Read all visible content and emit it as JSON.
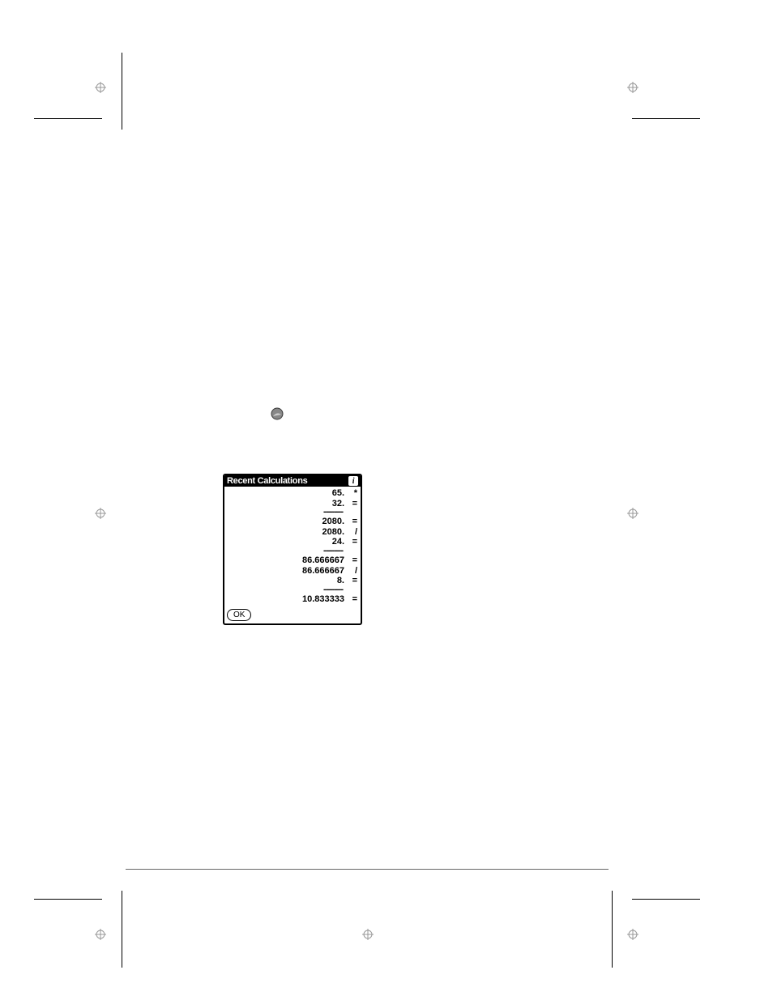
{
  "dialog": {
    "title": "Recent Calculations",
    "ok_label": "OK",
    "separator": "---------",
    "rows": [
      {
        "type": "line",
        "value": "65.",
        "op": "*"
      },
      {
        "type": "line",
        "value": "32.",
        "op": "="
      },
      {
        "type": "sep"
      },
      {
        "type": "line",
        "value": "2080.",
        "op": "="
      },
      {
        "type": "line",
        "value": "2080.",
        "op": "/"
      },
      {
        "type": "line",
        "value": "24.",
        "op": "="
      },
      {
        "type": "sep"
      },
      {
        "type": "line",
        "value": "86.666667",
        "op": "="
      },
      {
        "type": "line",
        "value": "86.666667",
        "op": "/"
      },
      {
        "type": "line",
        "value": "8.",
        "op": "="
      },
      {
        "type": "sep"
      },
      {
        "type": "line",
        "value": "10.833333",
        "op": "="
      }
    ]
  },
  "colors": {
    "background": "#ffffff",
    "foreground": "#000000",
    "rule": "#666666"
  }
}
